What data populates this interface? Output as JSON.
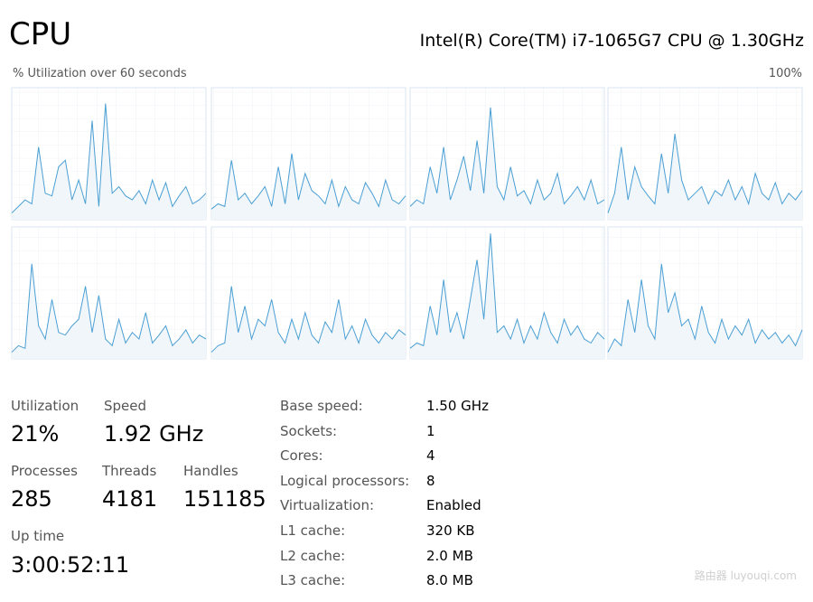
{
  "header": {
    "title": "CPU",
    "processor": "Intel(R) Core(TM) i7-1065G7 CPU @ 1.30GHz"
  },
  "graph_label": "% Utilization over 60 seconds",
  "graph_max": "100%",
  "chart_data": [
    {
      "type": "line",
      "ylim": [
        0,
        100
      ],
      "color": "#4a9fd4",
      "grid": true,
      "values": [
        5,
        10,
        15,
        12,
        55,
        20,
        18,
        40,
        45,
        15,
        30,
        12,
        75,
        10,
        88,
        20,
        25,
        18,
        15,
        22,
        12,
        30,
        15,
        28,
        10,
        18,
        25,
        12,
        15,
        20
      ]
    },
    {
      "type": "line",
      "ylim": [
        0,
        100
      ],
      "color": "#4a9fd4",
      "grid": true,
      "values": [
        8,
        12,
        10,
        45,
        15,
        20,
        12,
        18,
        25,
        10,
        40,
        12,
        50,
        15,
        35,
        22,
        18,
        12,
        30,
        10,
        25,
        15,
        12,
        28,
        20,
        10,
        30,
        15,
        12,
        18
      ]
    },
    {
      "type": "line",
      "ylim": [
        0,
        100
      ],
      "color": "#4a9fd4",
      "grid": true,
      "values": [
        10,
        15,
        12,
        40,
        20,
        55,
        15,
        30,
        48,
        22,
        60,
        20,
        85,
        25,
        15,
        40,
        18,
        22,
        12,
        30,
        15,
        20,
        35,
        12,
        18,
        25,
        15,
        30,
        12,
        15
      ]
    },
    {
      "type": "line",
      "ylim": [
        0,
        100
      ],
      "color": "#4a9fd4",
      "grid": true,
      "values": [
        5,
        20,
        55,
        15,
        40,
        25,
        18,
        12,
        50,
        20,
        65,
        30,
        15,
        20,
        25,
        12,
        22,
        18,
        30,
        15,
        25,
        12,
        35,
        20,
        15,
        28,
        12,
        20,
        15,
        22
      ]
    },
    {
      "type": "line",
      "ylim": [
        0,
        100
      ],
      "color": "#4a9fd4",
      "grid": true,
      "values": [
        5,
        10,
        8,
        72,
        25,
        15,
        45,
        20,
        18,
        25,
        30,
        55,
        20,
        48,
        15,
        10,
        30,
        12,
        20,
        15,
        35,
        12,
        18,
        25,
        10,
        15,
        22,
        12,
        18,
        15
      ]
    },
    {
      "type": "line",
      "ylim": [
        0,
        100
      ],
      "color": "#4a9fd4",
      "grid": true,
      "values": [
        5,
        10,
        12,
        55,
        20,
        40,
        15,
        30,
        25,
        45,
        20,
        12,
        30,
        15,
        35,
        18,
        12,
        28,
        20,
        45,
        15,
        25,
        12,
        30,
        18,
        12,
        20,
        15,
        22,
        18
      ]
    },
    {
      "type": "line",
      "ylim": [
        0,
        100
      ],
      "color": "#4a9fd4",
      "grid": true,
      "values": [
        8,
        12,
        10,
        40,
        18,
        60,
        20,
        35,
        15,
        45,
        75,
        30,
        95,
        20,
        25,
        15,
        30,
        12,
        25,
        15,
        35,
        20,
        12,
        30,
        18,
        25,
        15,
        12,
        20,
        15
      ]
    },
    {
      "type": "line",
      "ylim": [
        0,
        100
      ],
      "color": "#4a9fd4",
      "grid": true,
      "values": [
        5,
        15,
        10,
        45,
        20,
        60,
        25,
        15,
        72,
        35,
        50,
        25,
        30,
        15,
        40,
        20,
        12,
        30,
        15,
        25,
        18,
        30,
        12,
        22,
        15,
        20,
        12,
        18,
        10,
        22
      ]
    }
  ],
  "stats": [
    {
      "label": "Utilization",
      "value": "21%"
    },
    {
      "label": "Speed",
      "value": "1.92 GHz"
    },
    {
      "label": "Processes",
      "value": "285"
    },
    {
      "label": "Threads",
      "value": "4181"
    },
    {
      "label": "Handles",
      "value": "151185"
    },
    {
      "label": "Up time",
      "value": "3:00:52:11"
    }
  ],
  "details": [
    {
      "label": "Base speed:",
      "value": "1.50 GHz"
    },
    {
      "label": "Sockets:",
      "value": "1"
    },
    {
      "label": "Cores:",
      "value": "4"
    },
    {
      "label": "Logical processors:",
      "value": "8"
    },
    {
      "label": "Virtualization:",
      "value": "Enabled"
    },
    {
      "label": "L1 cache:",
      "value": "320 KB"
    },
    {
      "label": "L2 cache:",
      "value": "2.0 MB"
    },
    {
      "label": "L3 cache:",
      "value": "8.0 MB"
    }
  ],
  "watermark": "路由器 luyouqi.com"
}
